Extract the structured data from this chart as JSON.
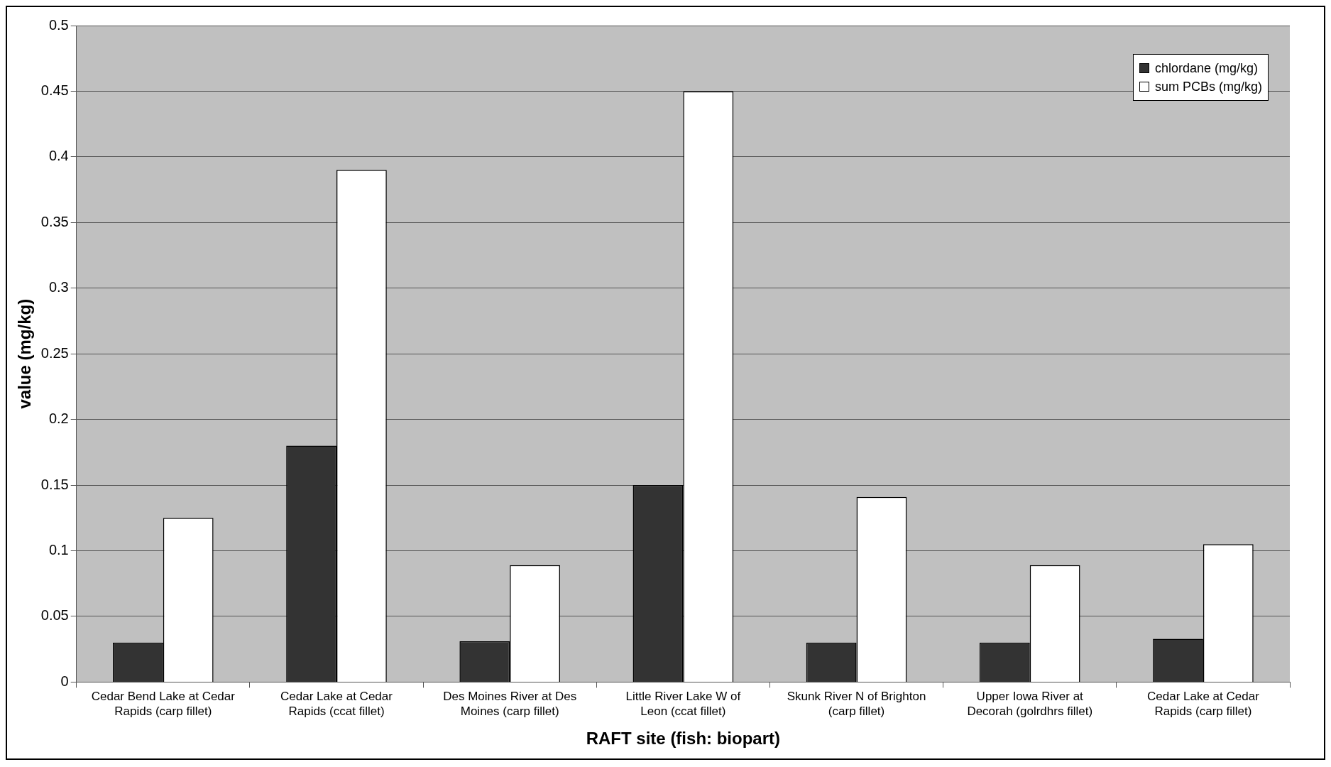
{
  "chart_data": {
    "type": "bar",
    "xlabel": "RAFT site (fish: biopart)",
    "ylabel": "value (mg/kg)",
    "categories": [
      "Cedar Bend Lake at Cedar Rapids (carp fillet)",
      "Cedar Lake at Cedar Rapids (ccat fillet)",
      "Des Moines River at Des Moines (carp fillet)",
      "Little River Lake W of Leon (ccat fillet)",
      "Skunk River N of Brighton (carp fillet)",
      "Upper Iowa River at Decorah (golrdhrs fillet)",
      "Cedar Lake at Cedar Rapids (carp fillet)"
    ],
    "series": [
      {
        "name": "chlordane (mg/kg)",
        "color": "#333333",
        "values": [
          0.03,
          0.18,
          0.031,
          0.15,
          0.03,
          0.03,
          0.033
        ]
      },
      {
        "name": "sum PCBs (mg/kg)",
        "color": "#ffffff",
        "values": [
          0.125,
          0.39,
          0.089,
          0.45,
          0.141,
          0.089,
          0.105
        ]
      }
    ],
    "ylim": [
      0,
      0.5
    ],
    "yticks": [
      0,
      0.05,
      0.1,
      0.15,
      0.2,
      0.25,
      0.3,
      0.35,
      0.4,
      0.45,
      0.5
    ],
    "grid": "y",
    "legend": "top right"
  }
}
